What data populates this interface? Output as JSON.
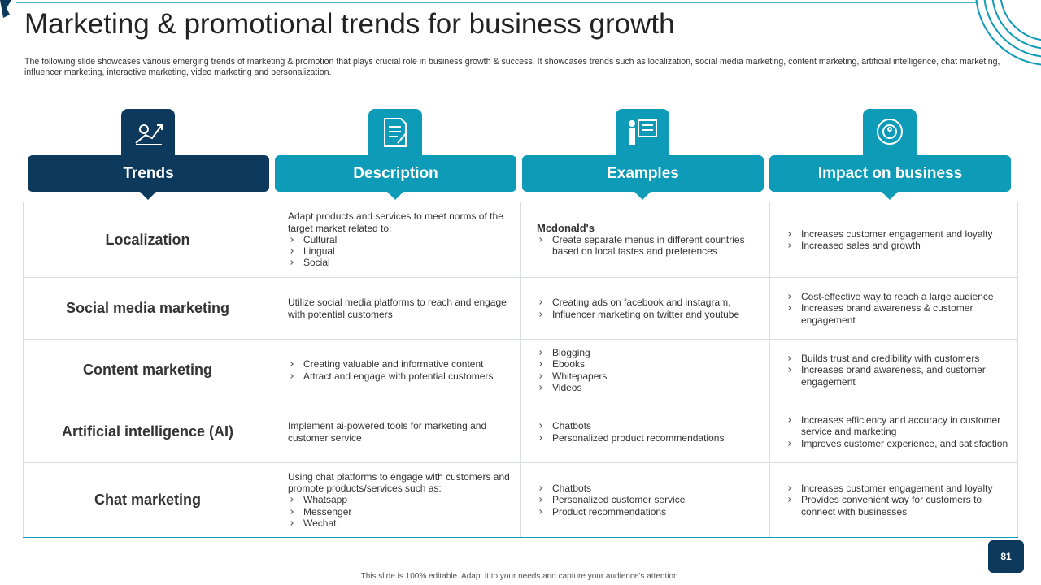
{
  "header": {
    "title": "Marketing & promotional trends for business growth",
    "subtitle": "The following slide showcases various emerging trends of marketing & promotion that plays crucial role in business growth & success. It showcases trends such as localization, social media marketing, content marketing, artificial intelligence, chat marketing, influencer marketing, interactive marketing, video marketing and personalization."
  },
  "table": {
    "columns": [
      "Trends",
      "Description",
      "Examples",
      "Impact on business"
    ],
    "rows": [
      {
        "trend": "Localization",
        "description": {
          "text": "Adapt products and services to meet norms of the target market related to:",
          "bullets": [
            "Cultural",
            "Lingual",
            "Social"
          ]
        },
        "examples": {
          "heading": "Mcdonald's",
          "bullets": [
            "Create separate menus in different countries based on local tastes and preferences"
          ]
        },
        "impact": {
          "bullets": [
            "Increases customer engagement and loyalty",
            "Increased sales and growth"
          ]
        }
      },
      {
        "trend": "Social media marketing",
        "description": {
          "text": "Utilize social media platforms to reach and engage with potential customers"
        },
        "examples": {
          "bullets": [
            "Creating ads on facebook and instagram,",
            "Influencer marketing on twitter and youtube"
          ]
        },
        "impact": {
          "bullets": [
            "Cost-effective way to reach a large audience",
            "Increases brand awareness & customer engagement"
          ]
        }
      },
      {
        "trend": "Content marketing",
        "description": {
          "bullets": [
            "Creating valuable and informative content",
            "Attract  and engage with potential customers"
          ]
        },
        "examples": {
          "bullets": [
            "Blogging",
            "Ebooks",
            "Whitepapers",
            "Videos"
          ]
        },
        "impact": {
          "bullets": [
            "Builds trust and credibility with customers",
            "Increases brand awareness, and customer engagement"
          ]
        }
      },
      {
        "trend": "Artificial intelligence (AI)",
        "description": {
          "text": "Implement ai-powered tools for marketing and customer service"
        },
        "examples": {
          "bullets": [
            "Chatbots",
            "Personalized product recommendations"
          ]
        },
        "impact": {
          "bullets": [
            "Increases efficiency and accuracy in customer service and marketing",
            "Improves customer experience, and satisfaction"
          ]
        }
      },
      {
        "trend": "Chat marketing",
        "description": {
          "text": "Using chat platforms to engage with customers and promote products/services such as:",
          "bullets": [
            "Whatsapp",
            "Messenger",
            "Wechat"
          ]
        },
        "examples": {
          "bullets": [
            "Chatbots",
            "Personalized customer service",
            "Product recommendations"
          ]
        },
        "impact": {
          "bullets": [
            "Increases customer engagement and loyalty",
            "Provides convenient way for customers to connect with businesses"
          ]
        }
      }
    ]
  },
  "footer": {
    "note": "This slide is 100% editable. Adapt it to your needs and capture your audience's attention.",
    "page": "81"
  }
}
